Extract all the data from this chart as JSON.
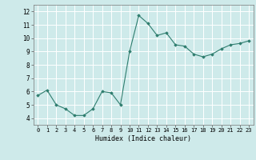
{
  "x": [
    0,
    1,
    2,
    3,
    4,
    5,
    6,
    7,
    8,
    9,
    10,
    11,
    12,
    13,
    14,
    15,
    16,
    17,
    18,
    19,
    20,
    21,
    22,
    23
  ],
  "y": [
    5.7,
    6.1,
    5.0,
    4.7,
    4.2,
    4.2,
    4.7,
    6.0,
    5.9,
    5.0,
    9.0,
    11.7,
    11.1,
    10.2,
    10.4,
    9.5,
    9.4,
    8.8,
    8.6,
    8.8,
    9.2,
    9.5,
    9.6,
    9.8
  ],
  "xlabel": "Humidex (Indice chaleur)",
  "xlim": [
    -0.5,
    23.5
  ],
  "ylim": [
    3.5,
    12.5
  ],
  "yticks": [
    4,
    5,
    6,
    7,
    8,
    9,
    10,
    11,
    12
  ],
  "xticks": [
    0,
    1,
    2,
    3,
    4,
    5,
    6,
    7,
    8,
    9,
    10,
    11,
    12,
    13,
    14,
    15,
    16,
    17,
    18,
    19,
    20,
    21,
    22,
    23
  ],
  "line_color": "#2e7d6e",
  "marker": "D",
  "marker_size": 1.8,
  "bg_color": "#ceeaea",
  "grid_color": "#ffffff",
  "font_family": "monospace",
  "tick_fontsize": 5.0,
  "xlabel_fontsize": 6.0
}
